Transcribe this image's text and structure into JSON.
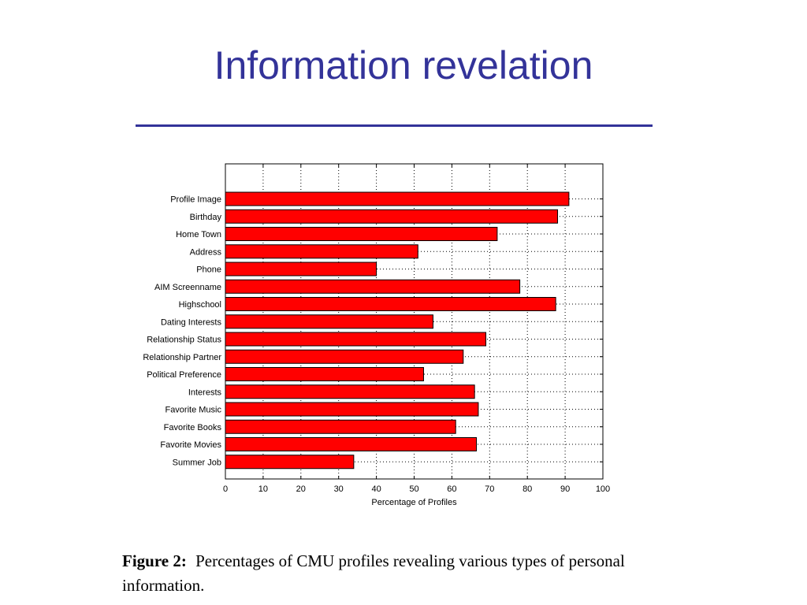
{
  "slide": {
    "title": "Information revelation"
  },
  "caption": {
    "lead": "Figure 2:",
    "text": "Percentages of CMU profiles revealing various types of personal information."
  },
  "colors": {
    "title": "#333399",
    "bar": "#ff0000",
    "bar_edge": "#000000"
  },
  "chart_data": {
    "type": "bar",
    "orientation": "horizontal",
    "categories": [
      "Profile Image",
      "Birthday",
      "Home Town",
      "Address",
      "Phone",
      "AIM Screenname",
      "Highschool",
      "Dating Interests",
      "Relationship Status",
      "Relationship Partner",
      "Political Preference",
      "Interests",
      "Favorite Music",
      "Favorite Books",
      "Favorite Movies",
      "Summer Job"
    ],
    "values": [
      91,
      88,
      72,
      51,
      40,
      78,
      87.5,
      55,
      69,
      63,
      52.5,
      66,
      67,
      61,
      66.5,
      34
    ],
    "xlabel": "Percentage of Profiles",
    "ylabel": "",
    "xlim": [
      0,
      100
    ],
    "xticks": [
      0,
      10,
      20,
      30,
      40,
      50,
      60,
      70,
      80,
      90,
      100
    ],
    "grid": true,
    "legend": "none"
  }
}
